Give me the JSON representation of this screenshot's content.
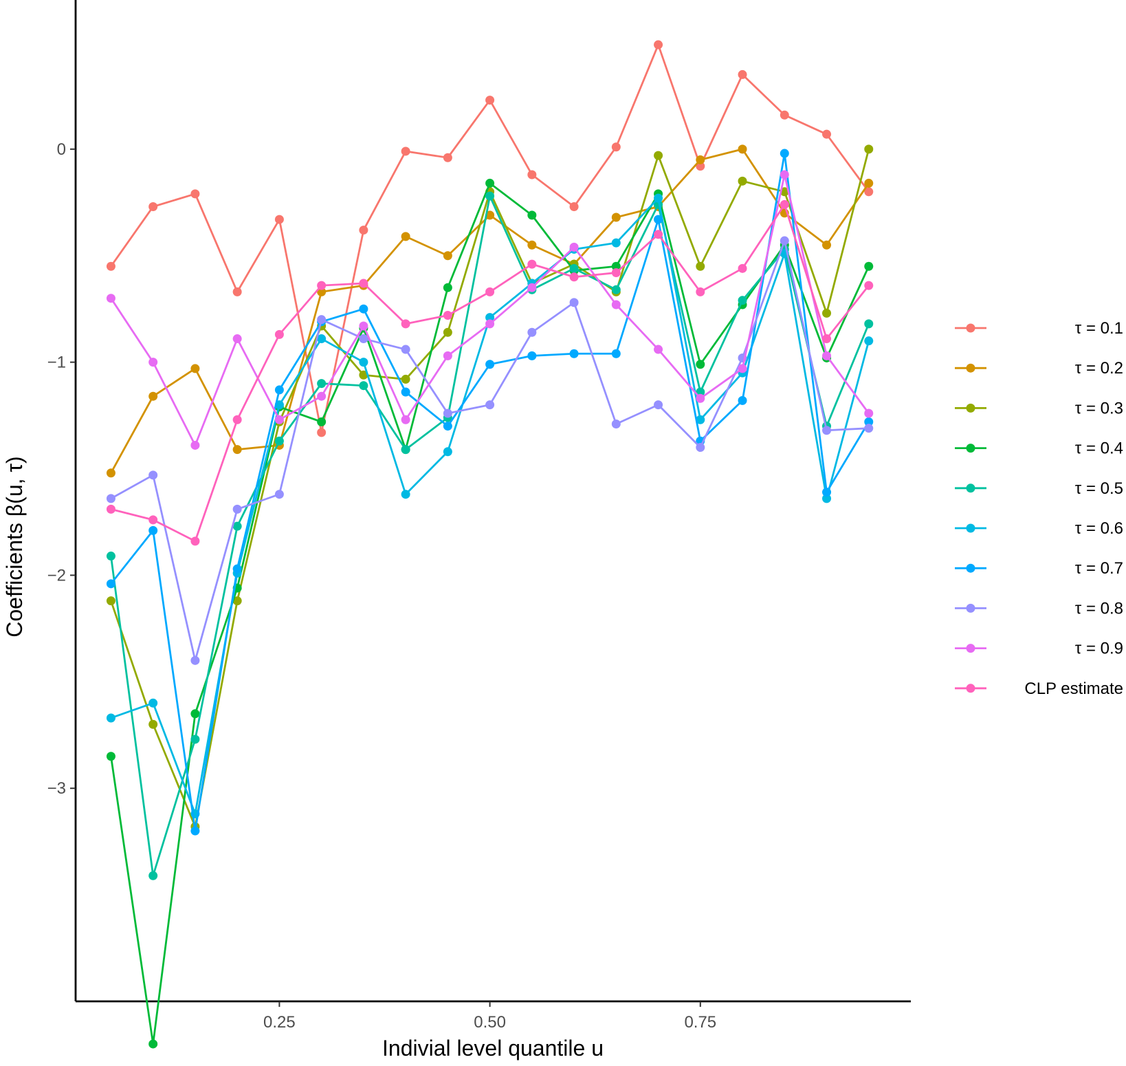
{
  "chart_data": {
    "type": "line",
    "xlabel": "Indivial level quantile u",
    "ylabel": "Coefficients β(u, τ)",
    "x_ticks": [
      0.25,
      0.5,
      0.75
    ],
    "x_tick_labels": [
      "0.25",
      "0.50",
      "0.75"
    ],
    "y_ticks": [
      0,
      -1,
      -2,
      -3
    ],
    "y_tick_labels": [
      "0",
      "−1",
      "−2",
      "−3"
    ],
    "xlim": [
      0.008,
      1.0
    ],
    "ylim": [
      -4.0,
      0.7
    ],
    "grid": false,
    "legend_position": "right",
    "x": [
      0.05,
      0.1,
      0.15,
      0.2,
      0.25,
      0.3,
      0.35,
      0.4,
      0.45,
      0.5,
      0.55,
      0.6,
      0.65,
      0.7,
      0.75,
      0.8,
      0.85,
      0.9,
      0.95
    ],
    "series": [
      {
        "name": "τ = 0.1",
        "color": "#F8766D",
        "values": [
          -0.55,
          -0.27,
          -0.21,
          -0.67,
          -0.33,
          -1.33,
          -0.38,
          -0.01,
          -0.04,
          0.23,
          -0.12,
          -0.27,
          0.01,
          0.49,
          -0.08,
          0.35,
          0.16,
          0.07,
          -0.2
        ]
      },
      {
        "name": "τ = 0.2",
        "color": "#D39200",
        "values": [
          -1.52,
          -1.16,
          -1.03,
          -1.41,
          -1.39,
          -0.67,
          -0.64,
          -0.41,
          -0.5,
          -0.31,
          -0.45,
          -0.54,
          -0.32,
          -0.27,
          -0.05,
          0.0,
          -0.3,
          -0.45,
          -0.16
        ]
      },
      {
        "name": "τ = 0.3",
        "color": "#93AA00",
        "values": [
          -2.12,
          -2.7,
          -3.18,
          -2.12,
          -1.28,
          -0.83,
          -1.06,
          -1.08,
          -0.86,
          -0.2,
          -0.63,
          -0.54,
          -0.67,
          -0.03,
          -0.55,
          -0.15,
          -0.2,
          -0.77,
          0.0
        ]
      },
      {
        "name": "τ = 0.4",
        "color": "#00BA38",
        "values": [
          -2.85,
          -4.2,
          -2.65,
          -2.06,
          -1.21,
          -1.28,
          -0.84,
          -1.41,
          -0.65,
          -0.16,
          -0.31,
          -0.57,
          -0.55,
          -0.21,
          -1.01,
          -0.73,
          -0.45,
          -0.98,
          -0.55
        ]
      },
      {
        "name": "τ = 0.5",
        "color": "#00C19F",
        "values": [
          -1.91,
          -3.41,
          -2.77,
          -1.77,
          -1.37,
          -1.1,
          -1.11,
          -1.41,
          -1.26,
          -0.22,
          -0.66,
          -0.56,
          -0.66,
          -0.26,
          -1.14,
          -0.71,
          -0.47,
          -1.3,
          -0.82
        ]
      },
      {
        "name": "τ = 0.6",
        "color": "#00B9E3",
        "values": [
          -2.67,
          -2.6,
          -3.12,
          -1.99,
          -1.2,
          -0.89,
          -1.0,
          -1.62,
          -1.42,
          -0.79,
          -0.63,
          -0.47,
          -0.44,
          -0.23,
          -1.27,
          -1.05,
          -0.49,
          -1.64,
          -0.9
        ]
      },
      {
        "name": "τ = 0.7",
        "color": "#00A9FF",
        "values": [
          -2.04,
          -1.79,
          -3.2,
          -1.97,
          -1.13,
          -0.81,
          -0.75,
          -1.14,
          -1.3,
          -1.01,
          -0.97,
          -0.96,
          -0.96,
          -0.33,
          -1.37,
          -1.18,
          -0.02,
          -1.61,
          -1.28
        ]
      },
      {
        "name": "τ = 0.8",
        "color": "#9590FF",
        "values": [
          -1.64,
          -1.53,
          -2.4,
          -1.69,
          -1.62,
          -0.8,
          -0.89,
          -0.94,
          -1.24,
          -1.2,
          -0.86,
          -0.72,
          -1.29,
          -1.2,
          -1.4,
          -0.98,
          -0.43,
          -1.32,
          -1.31
        ]
      },
      {
        "name": "τ = 0.9",
        "color": "#E76BF3",
        "values": [
          -0.7,
          -1.0,
          -1.39,
          -0.89,
          -1.27,
          -1.16,
          -0.83,
          -1.27,
          -0.97,
          -0.82,
          -0.65,
          -0.46,
          -0.73,
          -0.94,
          -1.17,
          -1.03,
          -0.12,
          -0.97,
          -1.24
        ]
      },
      {
        "name": "CLP estimate",
        "color": "#FF62BC",
        "values": [
          -1.69,
          -1.74,
          -1.84,
          -1.27,
          -0.87,
          -0.64,
          -0.63,
          -0.82,
          -0.78,
          -0.67,
          -0.54,
          -0.6,
          -0.58,
          -0.4,
          -0.67,
          -0.56,
          -0.26,
          -0.89,
          -0.64
        ]
      }
    ]
  }
}
